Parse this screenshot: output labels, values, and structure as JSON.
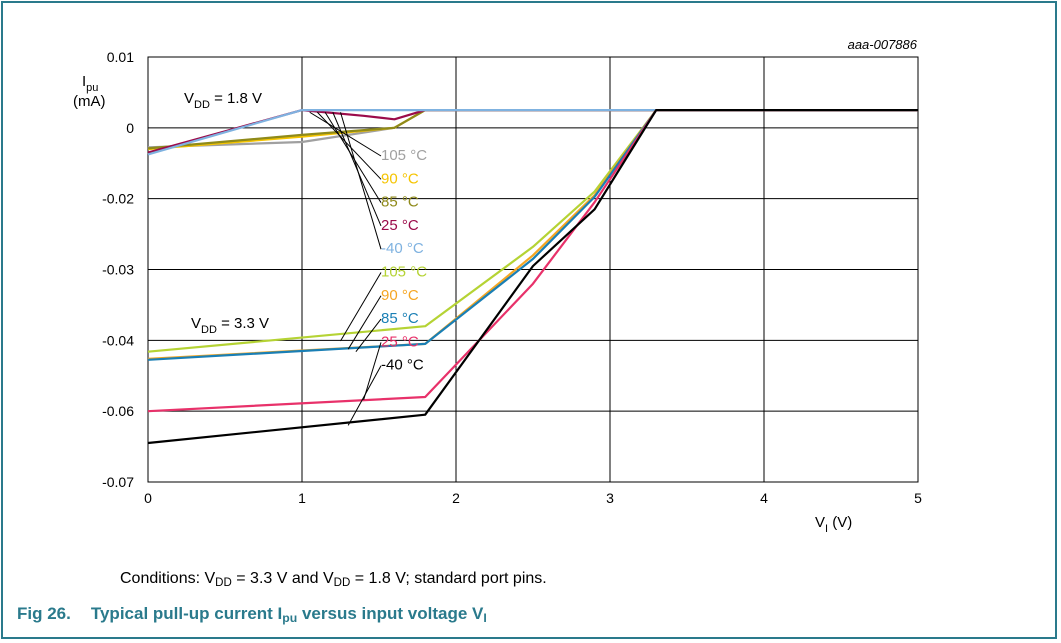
{
  "chart_data": {
    "type": "line",
    "figure_code": "aaa-007886",
    "ylabel": {
      "main": "I",
      "sub": "pu",
      "unit": "(mA)"
    },
    "xlabel": {
      "main": "V",
      "sub": "I",
      "unit": " (V)"
    },
    "xlim": [
      0,
      5
    ],
    "ylim": [
      -0.07,
      0.01
    ],
    "x_ticks": [
      "0",
      "1",
      "2",
      "3",
      "4",
      "5"
    ],
    "y_ticks": [
      "0.01",
      "0",
      "-0.02",
      "-0.03",
      "-0.04",
      "-0.06",
      "-0.07"
    ],
    "grid": true,
    "groups": [
      {
        "label": {
          "main": "V",
          "sub": "DD",
          "rest": " = 1.8 V"
        }
      },
      {
        "label": {
          "main": "V",
          "sub": "DD",
          "rest": " = 3.3 V"
        }
      }
    ],
    "series": [
      {
        "name": "105  °C",
        "group": 0,
        "color": "#a0a0a0",
        "x": [
          0,
          1,
          1.6,
          1.8,
          3.3,
          5
        ],
        "y": [
          -0.0055,
          -0.004,
          0,
          0.0025,
          0.0025,
          0.0025
        ]
      },
      {
        "name": "90  °C",
        "group": 0,
        "color": "#f5c400",
        "x": [
          0,
          1,
          1.6,
          1.8,
          3.3,
          5
        ],
        "y": [
          -0.006,
          -0.0025,
          0,
          0.0025,
          0.0025,
          0.0025
        ]
      },
      {
        "name": "85  °C",
        "group": 0,
        "color": "#8f8a1a",
        "x": [
          0,
          1,
          1.6,
          1.8,
          3.3,
          5
        ],
        "y": [
          -0.0058,
          -0.002,
          0,
          0.0025,
          0.0025,
          0.0025
        ]
      },
      {
        "name": "25  °C",
        "group": 0,
        "color": "#9b0b4a",
        "x": [
          0,
          1,
          1.4,
          1.6,
          1.8,
          3.3,
          5
        ],
        "y": [
          -0.007,
          0.0025,
          0.0017,
          0.0012,
          0.0025,
          0.0025,
          0.0025
        ]
      },
      {
        "name": "-40  °C",
        "group": 0,
        "color": "#7fb2e0",
        "x": [
          0,
          1,
          1.8,
          3.3,
          5
        ],
        "y": [
          -0.0075,
          0.0025,
          0.0025,
          0.0025,
          0.0025
        ]
      },
      {
        "name": "105  °C",
        "group": 1,
        "color": "#b5d334",
        "x": [
          0,
          1.8,
          2.5,
          2.9,
          3.3,
          5
        ],
        "y": [
          -0.0432,
          -0.038,
          -0.0268,
          -0.018,
          0.0025,
          0.0025
        ]
      },
      {
        "name": "90  °C",
        "group": 1,
        "color": "#f5a623",
        "x": [
          0,
          1.8,
          2.5,
          2.9,
          3.3,
          5
        ],
        "y": [
          -0.0452,
          -0.041,
          -0.028,
          -0.019,
          0.0025,
          0.0025
        ]
      },
      {
        "name": "85  °C",
        "group": 1,
        "color": "#1a7fb5",
        "x": [
          0,
          1.8,
          2.5,
          2.9,
          3.3,
          5
        ],
        "y": [
          -0.0455,
          -0.041,
          -0.0285,
          -0.0195,
          0.0025,
          0.0025
        ]
      },
      {
        "name": "25  °C",
        "group": 1,
        "color": "#e8316a",
        "x": [
          0,
          1.8,
          2.5,
          2.9,
          3.3,
          5
        ],
        "y": [
          -0.06,
          -0.056,
          -0.032,
          -0.0205,
          0.0025,
          0.0025
        ]
      },
      {
        "name": "-40  °C",
        "group": 1,
        "color": "#000000",
        "x": [
          0,
          1.8,
          2.5,
          2.9,
          3.3,
          5
        ],
        "y": [
          -0.0645,
          -0.0605,
          -0.0295,
          -0.0215,
          0.0025,
          0.0025
        ]
      }
    ]
  },
  "conditions": {
    "p1": "Conditions: V",
    "s1": "DD",
    "p2": " = 3.3 V and V",
    "s2": "DD",
    "p3": " = 1.8 V; standard port pins."
  },
  "caption": {
    "fig": "Fig 26.",
    "t1": "Typical pull-up current I",
    "s1": "pu",
    "t2": " versus input voltage V",
    "s2": "I"
  }
}
